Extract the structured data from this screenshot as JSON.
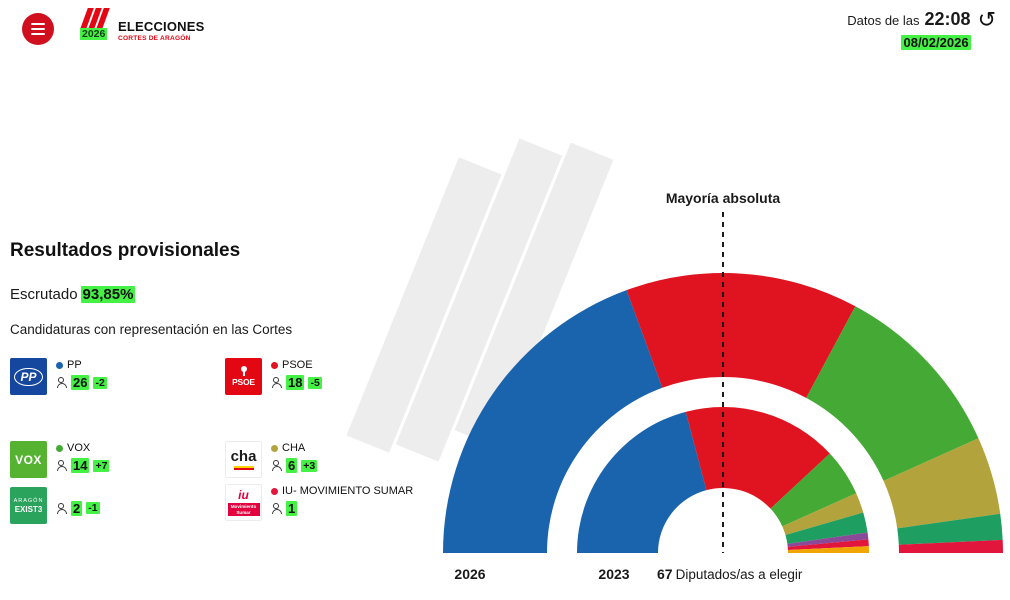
{
  "accent": {
    "highlight_green": "#44f144",
    "brand_red": "#e30613"
  },
  "icons": {
    "history": "↺"
  },
  "header": {
    "logo": {
      "year": "2026",
      "title": "ELECCIONES",
      "subtitle": "CORTES DE ARAGÓN"
    },
    "datetime": {
      "label": "Datos de las",
      "time": "22:08",
      "date": "08/02/2026"
    }
  },
  "panel": {
    "title": "Resultados provisionales",
    "scrutinized_label": "Escrutado",
    "scrutinized_value": "93,85%",
    "subtitle": "Candidaturas con representación en las Cortes",
    "parties": [
      {
        "name": "PP",
        "color": "#1a64ae",
        "seats": "26",
        "diff": "-2",
        "logo_text": "PP"
      },
      {
        "name": "PSOE",
        "color": "#e01420",
        "seats": "18",
        "diff": "-5",
        "logo_text": "PSOE"
      },
      {
        "name": "VOX",
        "color": "#45aa35",
        "seats": "14",
        "diff": "+7",
        "logo_text": "VOX"
      },
      {
        "name": "CHA",
        "color": "#b3a33c",
        "seats": "6",
        "diff": "+3",
        "logo_text": "cha"
      },
      {
        "name": "EXISTE",
        "color": "#1f9e62",
        "seats": "2",
        "diff": "-1",
        "logo_top": "ARAGÓN",
        "logo_text": "EXIST3"
      },
      {
        "name": "IU- MOVIMIENTO SUMAR",
        "color": "#e2153c",
        "seats": "1",
        "logo_text": "iu",
        "logo_band": "Movimiento Sumar"
      }
    ]
  },
  "chart_data": {
    "type": "hemicycle",
    "majority_label": "Mayoría absoluta",
    "total_seats": 67,
    "total_label": {
      "number": "67",
      "text": "Diputados/as a elegir"
    },
    "ring_labels": [
      "2026",
      "2023"
    ],
    "rings": [
      {
        "year": "2026",
        "outer_radius": 280,
        "inner_radius": 176,
        "segments": [
          {
            "party": "PP",
            "seats": 26,
            "color": "#1a64ae"
          },
          {
            "party": "PSOE",
            "seats": 18,
            "color": "#e01420"
          },
          {
            "party": "VOX",
            "seats": 14,
            "color": "#45aa35"
          },
          {
            "party": "CHA",
            "seats": 6,
            "color": "#b3a33c"
          },
          {
            "party": "EXISTE",
            "seats": 2,
            "color": "#1f9e62"
          },
          {
            "party": "IU",
            "seats": 1,
            "color": "#e2153c"
          }
        ]
      },
      {
        "year": "2023",
        "outer_radius": 146,
        "inner_radius": 65,
        "segments": [
          {
            "party": "PP",
            "seats": 28,
            "color": "#1a64ae"
          },
          {
            "party": "PSOE",
            "seats": 23,
            "color": "#e01420"
          },
          {
            "party": "VOX",
            "seats": 7,
            "color": "#45aa35"
          },
          {
            "party": "CHA",
            "seats": 3,
            "color": "#b3a33c"
          },
          {
            "party": "EXISTE",
            "seats": 3,
            "color": "#1f9e62"
          },
          {
            "party": "PODEMOS",
            "seats": 1,
            "color": "#8a4a98"
          },
          {
            "party": "IU",
            "seats": 1,
            "color": "#e2153c"
          },
          {
            "party": "PAR",
            "seats": 1,
            "color": "#f0a500"
          }
        ]
      }
    ]
  }
}
